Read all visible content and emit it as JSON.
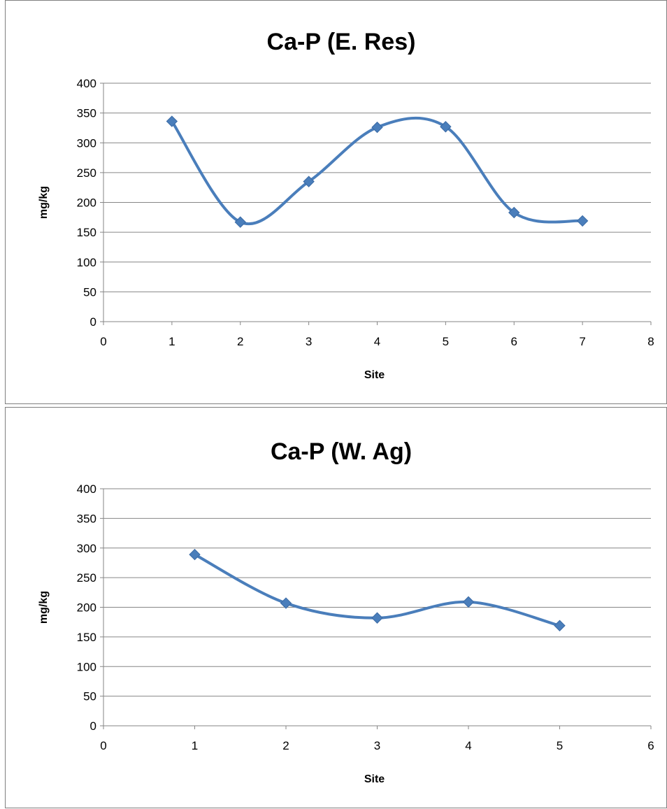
{
  "chart_data": [
    {
      "type": "line",
      "title": "Ca-P (E. Res)",
      "xlabel": "Site",
      "ylabel": "mg/kg",
      "xlim": [
        0,
        8
      ],
      "ylim": [
        0,
        400
      ],
      "x_ticks": [
        0,
        1,
        2,
        3,
        4,
        5,
        6,
        7,
        8
      ],
      "y_ticks": [
        0,
        50,
        100,
        150,
        200,
        250,
        300,
        350,
        400
      ],
      "grid": "horizontal",
      "legend": "none",
      "smooth": true,
      "series": [
        {
          "color": "#4a7ebb",
          "marker": "diamond",
          "x": [
            1,
            2,
            3,
            4,
            5,
            6,
            7
          ],
          "values": [
            336,
            167,
            235,
            326,
            327,
            183,
            169
          ]
        }
      ]
    },
    {
      "type": "line",
      "title": "Ca-P (W. Ag)",
      "xlabel": "Site",
      "ylabel": "mg/kg",
      "xlim": [
        0,
        6
      ],
      "ylim": [
        0,
        400
      ],
      "x_ticks": [
        0,
        1,
        2,
        3,
        4,
        5,
        6
      ],
      "y_ticks": [
        0,
        50,
        100,
        150,
        200,
        250,
        300,
        350,
        400
      ],
      "grid": "horizontal",
      "legend": "none",
      "smooth": true,
      "series": [
        {
          "color": "#4a7ebb",
          "marker": "diamond",
          "x": [
            1,
            2,
            3,
            4,
            5
          ],
          "values": [
            289,
            207,
            182,
            209,
            169
          ]
        }
      ]
    }
  ]
}
